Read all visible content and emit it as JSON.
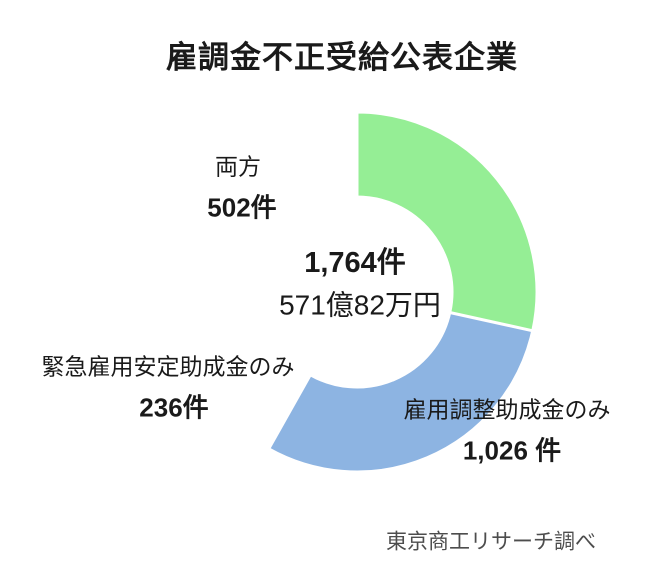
{
  "title": "雇調金不正受給公表企業",
  "source": "東京商工リサーチ調べ",
  "colors": {
    "blue": "#8db4e2",
    "peach": "#fbcfa5",
    "green": "#95ee95",
    "separator": "#ffffff",
    "text": "#1a1a1a",
    "source_text": "#4d4d4d"
  },
  "center": {
    "total_label": "1,764件",
    "amount_label": "571億82万円"
  },
  "chart_data": {
    "type": "pie",
    "donut": true,
    "hole_ratio": 0.53,
    "start_angle_deg": 0,
    "direction": "clockwise",
    "title": "雇調金不正受給公表企業",
    "total_value": 1764,
    "total_label": "1,764件",
    "center_sublabel": "571億82万円",
    "legend_position": "none",
    "segments": [
      {
        "label": "雇用調整助成金のみ",
        "value": 1026,
        "value_label": "1,026 件",
        "color": "#8db4e2"
      },
      {
        "label": "緊急雇用安定助成金のみ",
        "value": 236,
        "value_label": "236件",
        "color": "#fbcfa5"
      },
      {
        "label": "両方",
        "value": 502,
        "value_label": "502件",
        "color": "#95ee95"
      }
    ],
    "source": "東京商工リサーチ調べ"
  }
}
